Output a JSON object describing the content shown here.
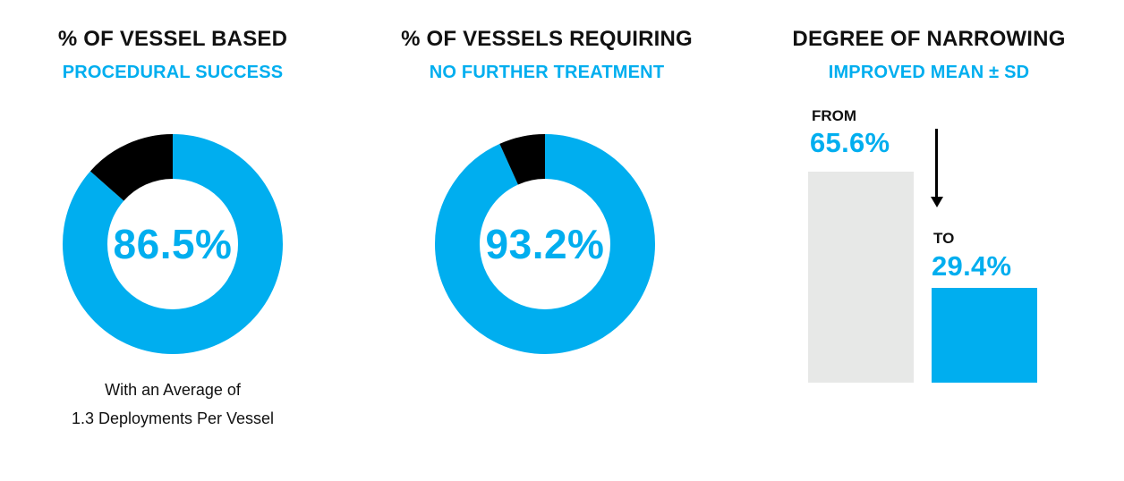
{
  "colors": {
    "accent": "#00AEEF",
    "dark": "#000000",
    "gray_bar": "#E7E8E7",
    "text": "#111111"
  },
  "panels": {
    "success": {
      "title": "% OF VESSEL BASED",
      "subtitle": "PROCEDURAL SUCCESS",
      "value_label": "86.5%",
      "caption_line1": "With an Average of",
      "caption_line2": "1.3 Deployments Per Vessel"
    },
    "no_treatment": {
      "title": "% OF VESSELS REQUIRING",
      "subtitle": "NO FURTHER TREATMENT",
      "value_label": "93.2%"
    },
    "narrowing": {
      "title": "DEGREE OF NARROWING",
      "subtitle": "IMPROVED MEAN ± SD",
      "from_label": "FROM",
      "from_value": "65.6%",
      "to_label": "TO",
      "to_value": "29.4%"
    }
  },
  "chart_data": [
    {
      "type": "pie",
      "title": "% OF VESSEL BASED",
      "subtitle": "PROCEDURAL SUCCESS",
      "values": [
        86.5,
        13.5
      ],
      "colors": [
        "#00AEEF",
        "#000000"
      ]
    },
    {
      "type": "pie",
      "title": "% OF VESSELS REQUIRING",
      "subtitle": "NO FURTHER TREATMENT",
      "values": [
        93.2,
        6.8
      ],
      "colors": [
        "#00AEEF",
        "#000000"
      ]
    },
    {
      "type": "bar",
      "title": "DEGREE OF NARROWING",
      "subtitle": "IMPROVED MEAN ± SD",
      "categories": [
        "FROM",
        "TO"
      ],
      "values": [
        65.6,
        29.4
      ],
      "colors": [
        "#E7E8E7",
        "#00AEEF"
      ]
    }
  ]
}
